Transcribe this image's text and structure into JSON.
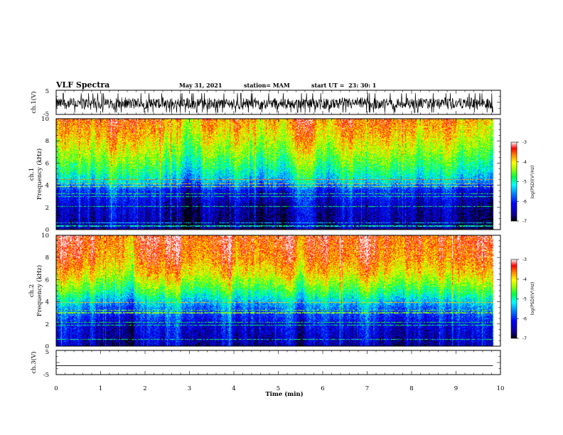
{
  "header": {
    "title": "VLF Spectra",
    "date": "May 31, 2021",
    "station": "station= MAM",
    "start_ut": "start UT =  23: 30: 1"
  },
  "chart_data": [
    {
      "type": "line",
      "panel": "ch1-waveform",
      "ylabel": "ch.1(V)",
      "ylim": [
        -5,
        5
      ],
      "xlim": [
        0,
        10
      ],
      "y_tick_labels": [
        "5",
        "-5"
      ],
      "description_values": {
        "baseline_v": -0.5,
        "amplitude_v": 2.8
      },
      "color": "#000000"
    },
    {
      "type": "heatmap",
      "panel": "ch1-spectrogram",
      "ylabel_line1": "ch.1",
      "ylabel_line2": "Frequency (kHz)",
      "ylim": [
        0,
        10
      ],
      "xlim": [
        0,
        10
      ],
      "y_ticks": [
        "0",
        "2",
        "4",
        "6",
        "8",
        "10"
      ],
      "colorbar": {
        "label": "log(PSD)(V²/Hz)",
        "range": [
          -7,
          -3
        ],
        "ticks": [
          "-3",
          "-4",
          "-5",
          "-6",
          "-7"
        ]
      },
      "level_profile_by_freq_khz": [
        {
          "f": 0,
          "v": -6.6
        },
        {
          "f": 2,
          "v": -6.4
        },
        {
          "f": 3.5,
          "v": -6.0
        },
        {
          "f": 4.3,
          "v": -5.3
        },
        {
          "f": 5.5,
          "v": -4.8
        },
        {
          "f": 7,
          "v": -4.3
        },
        {
          "f": 8.5,
          "v": -3.9
        },
        {
          "f": 10,
          "v": -3.6
        }
      ]
    },
    {
      "type": "heatmap",
      "panel": "ch2-spectrogram",
      "ylabel_line1": "ch.2",
      "ylabel_line2": "Frequency (kHz)",
      "ylim": [
        0,
        10
      ],
      "xlim": [
        0,
        10
      ],
      "y_ticks": [
        "0",
        "2",
        "4",
        "6",
        "8",
        "10"
      ],
      "colorbar": {
        "label": "log(PSD)(V²/Hz)",
        "range": [
          -7,
          -3
        ],
        "ticks": [
          "-3",
          "-4",
          "-5",
          "-6",
          "-7"
        ]
      },
      "level_profile_by_freq_khz": [
        {
          "f": 0,
          "v": -6.5
        },
        {
          "f": 2,
          "v": -6.2
        },
        {
          "f": 3.5,
          "v": -5.6
        },
        {
          "f": 5,
          "v": -4.7
        },
        {
          "f": 6.5,
          "v": -4.0
        },
        {
          "f": 8,
          "v": -3.6
        },
        {
          "f": 10,
          "v": -3.4
        }
      ]
    },
    {
      "type": "line",
      "panel": "ch3-waveform",
      "ylabel": "ch.3(V)",
      "ylim": [
        -5,
        5
      ],
      "xlim": [
        0,
        10
      ],
      "y_tick_labels": [
        "5",
        "-5"
      ],
      "constant_value_v": -1.3,
      "xlabel": "Time (min)",
      "x_ticks": [
        "0",
        "1",
        "2",
        "3",
        "4",
        "5",
        "6",
        "7",
        "8",
        "9",
        "10"
      ],
      "color": "#000000"
    }
  ]
}
